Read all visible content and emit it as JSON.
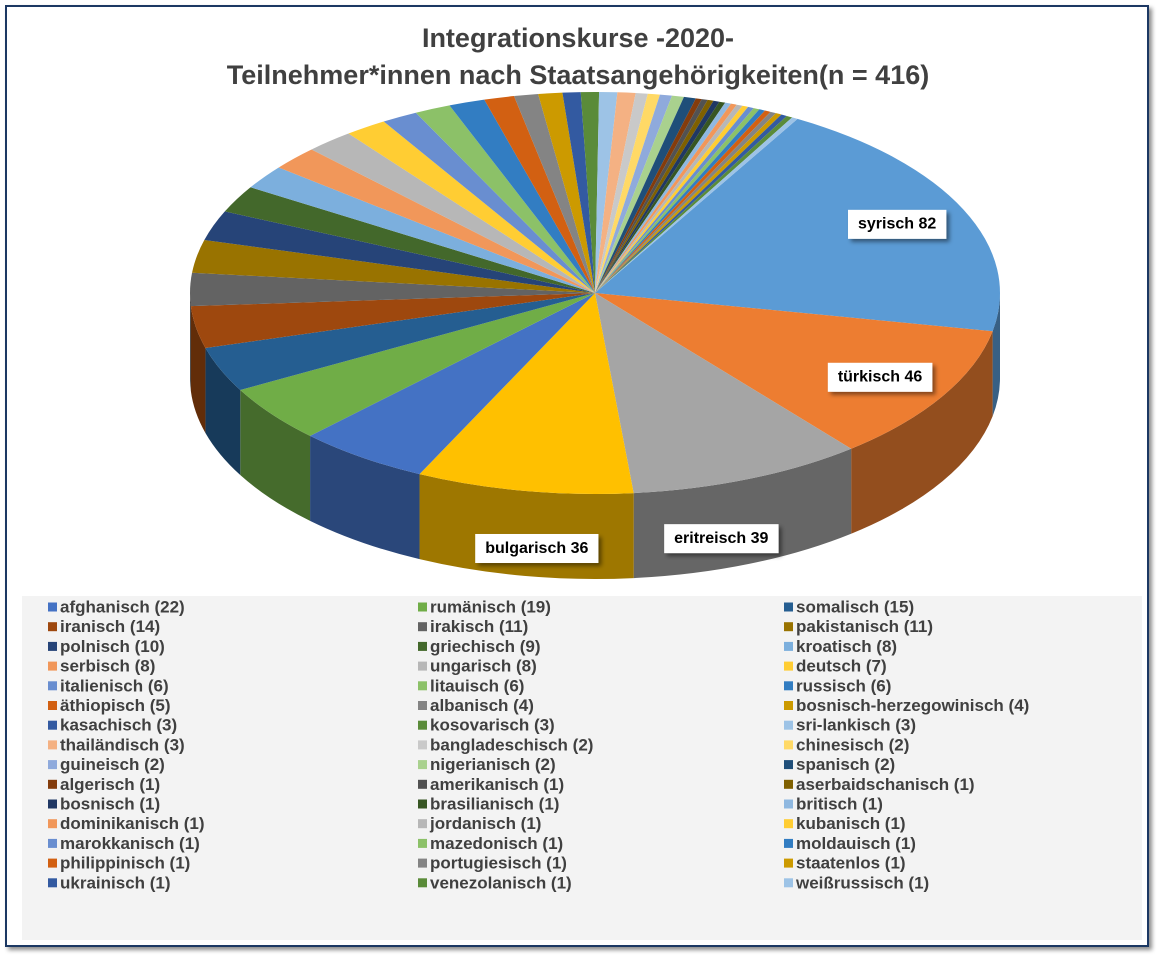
{
  "chart_data": {
    "type": "pie3d",
    "title": "Integrationskurse -2020-",
    "subtitle": "Teilnehmer*innen nach Staatsangehörigkeiten(n = 416)",
    "categories": [
      "syrisch",
      "türkisch",
      "eritreisch",
      "bulgarisch",
      "afghanisch",
      "rumänisch",
      "somalisch",
      "iranisch",
      "irakisch",
      "pakistanisch",
      "polnisch",
      "griechisch",
      "kroatisch",
      "serbisch",
      "ungarisch",
      "deutsch",
      "italienisch",
      "litauisch",
      "russisch",
      "äthiopisch",
      "albanisch",
      "bosnisch-herzegowinisch",
      "kasachisch",
      "kosovarisch",
      "sri-lankisch",
      "thailändisch",
      "bangladeschisch",
      "chinesisch",
      "guineisch",
      "nigerianisch",
      "spanisch",
      "algerisch",
      "amerikanisch",
      "aserbaidschanisch",
      "bosnisch",
      "brasilianisch",
      "britisch",
      "dominikanisch",
      "jordanisch",
      "kubanisch",
      "marokkanisch",
      "mazedonisch",
      "moldauisch",
      "philippinisch",
      "portugiesisch",
      "staatenlos",
      "ukrainisch",
      "venezolanisch",
      "weißrussisch"
    ],
    "values": [
      82,
      46,
      39,
      36,
      22,
      19,
      15,
      14,
      11,
      11,
      10,
      9,
      8,
      8,
      8,
      7,
      6,
      6,
      6,
      5,
      4,
      4,
      3,
      3,
      3,
      3,
      2,
      2,
      2,
      2,
      2,
      1,
      1,
      1,
      1,
      1,
      1,
      1,
      1,
      1,
      1,
      1,
      1,
      1,
      1,
      1,
      1,
      1,
      1
    ],
    "legend_labels": [
      null,
      null,
      null,
      null,
      "afghanisch (22)",
      "rumänisch (19)",
      "somalisch (15)",
      "iranisch (14)",
      "irakisch (11)",
      "pakistanisch (11)",
      "polnisch (10)",
      "griechisch (9)",
      "kroatisch (8)",
      "serbisch (8)",
      "ungarisch (8)",
      "deutsch (7)",
      "italienisch (6)",
      "litauisch (6)",
      "russisch (6)",
      "äthiopisch (5)",
      "albanisch (4)",
      "bosnisch-herzegowinisch (4)",
      "kasachisch (3)",
      "kosovarisch (3)",
      "sri-lankisch (3)",
      "thailändisch (3)",
      "bangladeschisch (2)",
      "chinesisch (2)",
      "guineisch (2)",
      "nigerianisch (2)",
      "spanisch (2)",
      "algerisch (1)",
      "amerikanisch (1)",
      "aserbaidschanisch (1)",
      "bosnisch (1)",
      "brasilianisch (1)",
      "britisch (1)",
      "dominikanisch (1)",
      "jordanisch (1)",
      "kubanisch (1)",
      "marokkanisch (1)",
      "mazedonisch (1)",
      "moldauisch (1)",
      "philippinisch (1)",
      "portugiesisch (1)",
      "staatenlos (1)",
      "ukrainisch (1)",
      "venezolanisch (1)",
      "weißrussisch (1)"
    ],
    "colors": [
      "#5B9BD5",
      "#ED7D31",
      "#A5A5A5",
      "#FFC000",
      "#4472C4",
      "#70AD47",
      "#255E91",
      "#9E480E",
      "#636363",
      "#997300",
      "#264478",
      "#43682B",
      "#7CAFDD",
      "#F1975A",
      "#B7B7B7",
      "#FFCD33",
      "#698ED0",
      "#8CC168",
      "#327DC2",
      "#D26012",
      "#848484",
      "#CC9A00",
      "#335AA1",
      "#5A8B39",
      "#9DC3E6",
      "#F4B183",
      "#C9C9C9",
      "#FFD966",
      "#8FAADC",
      "#A9D18E",
      "#1F4E79",
      "#843C0C",
      "#525252",
      "#7F6000",
      "#203864",
      "#375623",
      "#8FB8E0",
      "#F1975A",
      "#B7B7B7",
      "#FFCD33",
      "#698ED0",
      "#8CC168",
      "#327DC2",
      "#D26012",
      "#848484",
      "#CC9A00",
      "#335AA1",
      "#5A8B39",
      "#9DC3E6"
    ],
    "legend": "bottom"
  }
}
